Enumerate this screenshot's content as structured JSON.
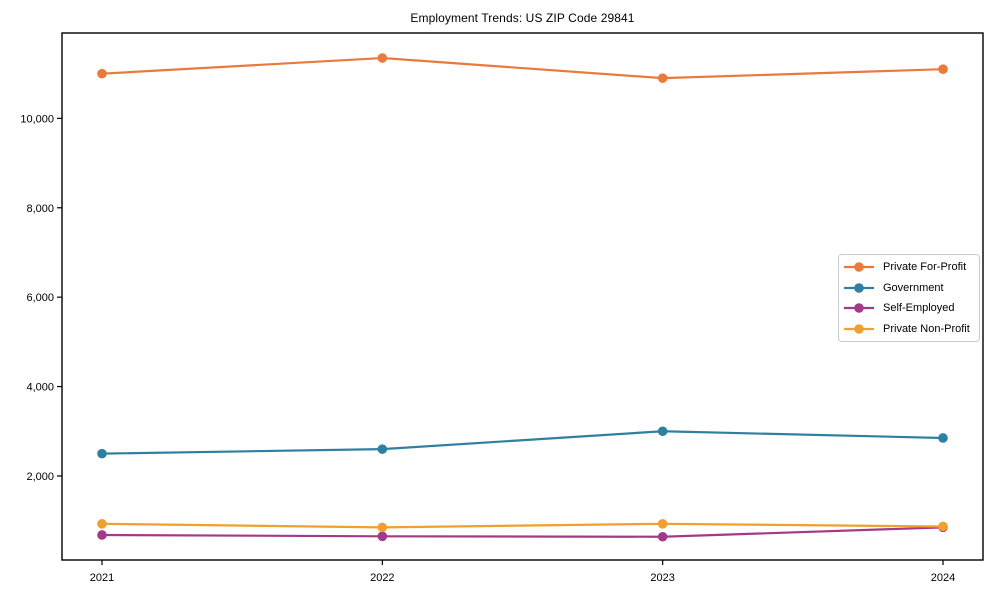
{
  "title": "Employment Trends: US ZIP Code 29841",
  "chart_data": {
    "type": "line",
    "title": "Employment Trends: US ZIP Code 29841",
    "xlabel": "",
    "ylabel": "",
    "x": [
      2021,
      2022,
      2023,
      2024
    ],
    "xtick_labels": [
      "2021",
      "2022",
      "2023",
      "2024"
    ],
    "yticks": [
      2000,
      4000,
      6000,
      8000,
      10000
    ],
    "ytick_labels": [
      "2,000",
      "4,000",
      "6,000",
      "8,000",
      "10,000"
    ],
    "ylim": [
      120,
      11910
    ],
    "grid": false,
    "legend_position": "center-right",
    "marker": "circle",
    "series": [
      {
        "name": "Private For-Profit",
        "color": "#e87a3d",
        "values": [
          11000,
          11350,
          10900,
          11100
        ]
      },
      {
        "name": "Government",
        "color": "#2e7fa0",
        "values": [
          2500,
          2600,
          3000,
          2850
        ]
      },
      {
        "name": "Self-Employed",
        "color": "#a23a89",
        "values": [
          680,
          650,
          640,
          850
        ]
      },
      {
        "name": "Private Non-Profit",
        "color": "#f0a02f",
        "values": [
          930,
          850,
          930,
          870
        ]
      }
    ],
    "axis_color": "#000000",
    "tick_label_color": "#000000"
  }
}
